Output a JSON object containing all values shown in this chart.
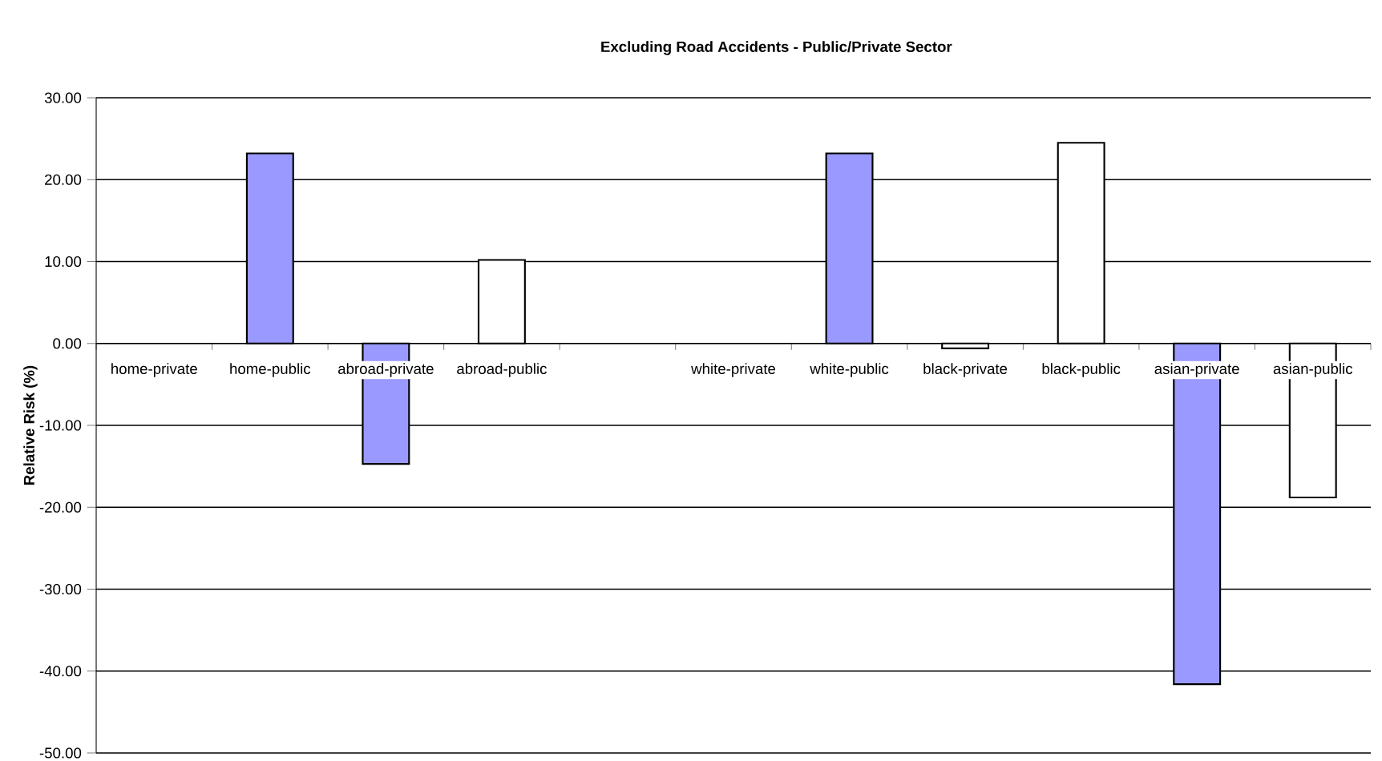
{
  "chart_data": {
    "type": "bar",
    "title": "Excluding Road Accidents - Public/Private Sector",
    "ylabel": "Relative Risk (%)",
    "categories": [
      "home-private",
      "home-public",
      "abroad-private",
      "abroad-public",
      null,
      "white-private",
      "white-public",
      "black-private",
      "black-public",
      "asian-private",
      "asian-public"
    ],
    "values": [
      null,
      23.2,
      -14.7,
      10.2,
      null,
      null,
      23.2,
      -0.6,
      24.5,
      -41.6,
      -18.8
    ],
    "colors": [
      "#9999ff",
      "#9999ff",
      "#9999ff",
      "#ffffff",
      "#ffffff",
      "#9999ff",
      "#9999ff",
      "#ffffff",
      "#ffffff",
      "#9999ff",
      "#ffffff"
    ],
    "ylim": [
      -50,
      30
    ],
    "yticks": [
      {
        "value": -50,
        "label": "-50.00"
      },
      {
        "value": -40,
        "label": "-40.00"
      },
      {
        "value": -30,
        "label": "-30.00"
      },
      {
        "value": -20,
        "label": "-20.00"
      },
      {
        "value": -10,
        "label": "-10.00"
      },
      {
        "value": 0,
        "label": "0.00"
      },
      {
        "value": 10,
        "label": "10.00"
      },
      {
        "value": 20,
        "label": "20.00"
      },
      {
        "value": 30,
        "label": "30.00"
      }
    ],
    "grid": "y"
  }
}
